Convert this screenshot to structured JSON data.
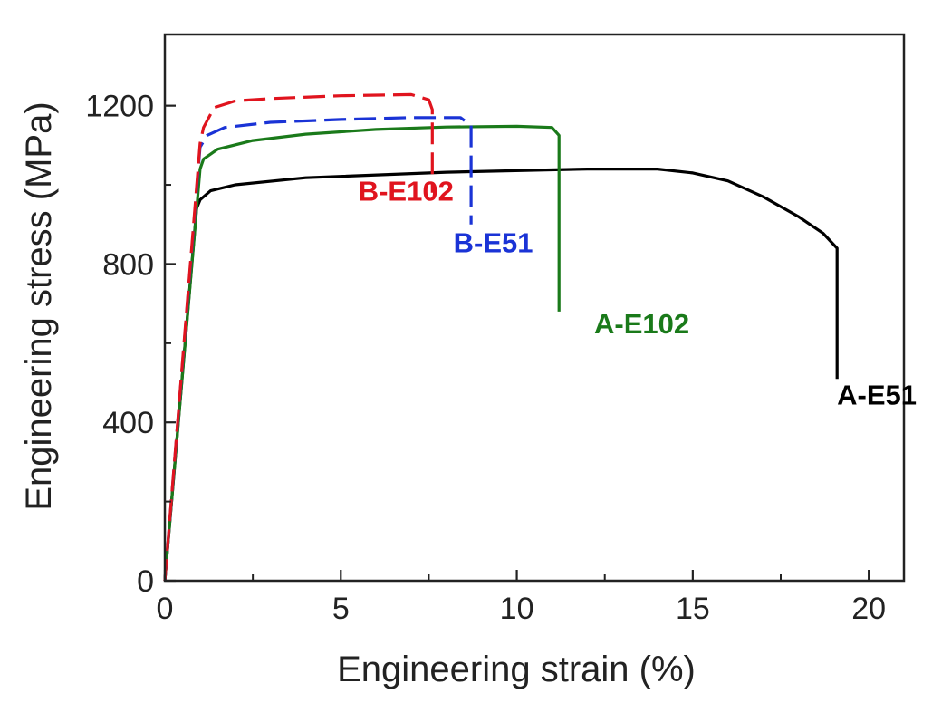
{
  "chart_data": {
    "type": "line",
    "xlabel": "Engineering strain (%)",
    "ylabel": "Engineering stress (MPa)",
    "xlim": [
      0,
      21
    ],
    "ylim": [
      0,
      1380
    ],
    "xticks": [
      0,
      5,
      10,
      15,
      20
    ],
    "yticks": [
      0,
      400,
      800,
      1200
    ],
    "minor_xticks": [
      2.5,
      7.5,
      12.5,
      17.5
    ],
    "minor_yticks": [
      200,
      600,
      1000
    ],
    "grid": false,
    "series": [
      {
        "name": "A-E51",
        "label": "A-E51",
        "color": "#000000",
        "dashed": false,
        "points": [
          [
            0,
            0
          ],
          [
            0.9,
            940
          ],
          [
            1.0,
            962
          ],
          [
            1.3,
            985
          ],
          [
            2,
            1000
          ],
          [
            4,
            1018
          ],
          [
            8,
            1032
          ],
          [
            12,
            1040
          ],
          [
            14,
            1040
          ],
          [
            15,
            1030
          ],
          [
            16,
            1010
          ],
          [
            17,
            970
          ],
          [
            18,
            920
          ],
          [
            18.7,
            878
          ],
          [
            19.1,
            840
          ],
          [
            19.1,
            510
          ]
        ]
      },
      {
        "name": "A-E102",
        "label": "A-E102",
        "color": "#1a7a1a",
        "dashed": false,
        "points": [
          [
            0,
            0
          ],
          [
            1.0,
            1040
          ],
          [
            1.1,
            1065
          ],
          [
            1.5,
            1090
          ],
          [
            2.5,
            1112
          ],
          [
            4,
            1128
          ],
          [
            6,
            1140
          ],
          [
            8,
            1146
          ],
          [
            10,
            1148
          ],
          [
            11,
            1145
          ],
          [
            11.2,
            1125
          ],
          [
            11.2,
            680
          ]
        ]
      },
      {
        "name": "B-E51",
        "label": "B-E51",
        "color": "#1a33d6",
        "dashed": true,
        "points": [
          [
            0,
            0
          ],
          [
            1.0,
            1095
          ],
          [
            1.2,
            1125
          ],
          [
            1.7,
            1145
          ],
          [
            3,
            1158
          ],
          [
            5,
            1165
          ],
          [
            7,
            1170
          ],
          [
            8.4,
            1170
          ],
          [
            8.7,
            1150
          ],
          [
            8.7,
            900
          ]
        ]
      },
      {
        "name": "B-E102",
        "label": "B-E102",
        "color": "#e0141e",
        "dashed": true,
        "points": [
          [
            0,
            0
          ],
          [
            1.0,
            1105
          ],
          [
            1.1,
            1145
          ],
          [
            1.4,
            1195
          ],
          [
            2,
            1212
          ],
          [
            3,
            1218
          ],
          [
            5,
            1225
          ],
          [
            7,
            1228
          ],
          [
            7.5,
            1215
          ],
          [
            7.6,
            1190
          ],
          [
            7.6,
            980
          ]
        ]
      }
    ],
    "annotations": [
      {
        "text": "B-E102",
        "x": 5.5,
        "y": 960,
        "color": "#e0141e"
      },
      {
        "text": "B-E51",
        "x": 8.2,
        "y": 830,
        "color": "#1a33d6"
      },
      {
        "text": "A-E102",
        "x": 12.2,
        "y": 625,
        "color": "#1a7a1a"
      },
      {
        "text": "A-E51",
        "x": 19.1,
        "y": 445,
        "color": "#000000"
      }
    ]
  }
}
